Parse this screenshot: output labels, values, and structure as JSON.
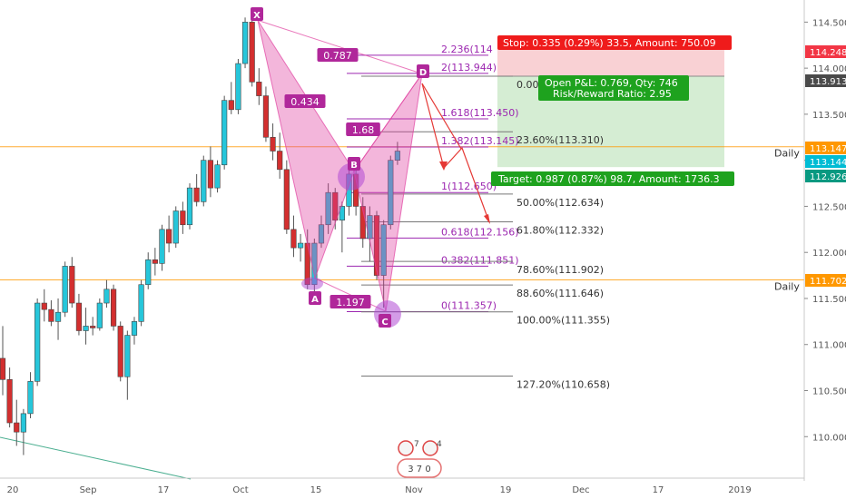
{
  "chart_data": {
    "type": "candlestick",
    "title": "",
    "xlabel": "",
    "ylabel": "",
    "ylim": [
      109.52,
      114.74
    ],
    "time_axis": {
      "ticks": [
        "20",
        "Sep",
        "17",
        "Oct",
        "15",
        "Nov",
        "19",
        "Dec",
        "17",
        "2019"
      ]
    },
    "price_axis": {
      "ticks": [
        "114.500",
        "114.000",
        "113.500",
        "113.000",
        "112.500",
        "112.000",
        "111.500",
        "111.000",
        "110.500",
        "110.000"
      ],
      "labels": [
        {
          "text": "114.248",
          "color": "#f23645"
        },
        {
          "text": "113.913",
          "color": "#4a4a4a"
        },
        {
          "text": "113.147",
          "color": "#ff9800"
        },
        {
          "text": "113.144",
          "color": "#00bcd4"
        },
        {
          "text": "112.926",
          "color": "#089981"
        },
        {
          "text": "111.702",
          "color": "#ff9800"
        }
      ]
    },
    "candles": [
      [
        110.85,
        111.2,
        110.45,
        110.62
      ],
      [
        110.62,
        110.75,
        110.1,
        110.15
      ],
      [
        110.15,
        110.4,
        109.9,
        110.05
      ],
      [
        110.05,
        110.3,
        109.8,
        110.25
      ],
      [
        110.25,
        110.7,
        110.2,
        110.6
      ],
      [
        110.6,
        111.5,
        110.55,
        111.45
      ],
      [
        111.45,
        111.6,
        111.25,
        111.38
      ],
      [
        111.38,
        111.48,
        111.2,
        111.25
      ],
      [
        111.25,
        111.5,
        111.05,
        111.35
      ],
      [
        111.35,
        111.9,
        111.3,
        111.85
      ],
      [
        111.85,
        111.95,
        111.4,
        111.45
      ],
      [
        111.45,
        111.55,
        111.1,
        111.15
      ],
      [
        111.15,
        111.4,
        111.0,
        111.2
      ],
      [
        111.2,
        111.3,
        111.1,
        111.18
      ],
      [
        111.18,
        111.5,
        111.15,
        111.45
      ],
      [
        111.45,
        111.7,
        111.4,
        111.6
      ],
      [
        111.6,
        111.65,
        111.15,
        111.2
      ],
      [
        111.2,
        111.25,
        110.6,
        110.65
      ],
      [
        110.65,
        111.15,
        110.4,
        111.1
      ],
      [
        111.1,
        111.3,
        111.0,
        111.25
      ],
      [
        111.25,
        111.7,
        111.2,
        111.65
      ],
      [
        111.65,
        112.0,
        111.6,
        111.92
      ],
      [
        111.92,
        112.05,
        111.75,
        111.88
      ],
      [
        111.88,
        112.3,
        111.8,
        112.25
      ],
      [
        112.25,
        112.4,
        112.0,
        112.1
      ],
      [
        112.1,
        112.5,
        112.05,
        112.45
      ],
      [
        112.45,
        112.55,
        112.2,
        112.3
      ],
      [
        112.3,
        112.75,
        112.25,
        112.7
      ],
      [
        112.7,
        112.85,
        112.5,
        112.55
      ],
      [
        112.55,
        113.05,
        112.5,
        113.0
      ],
      [
        113.0,
        113.15,
        112.6,
        112.7
      ],
      [
        112.7,
        113.0,
        112.65,
        112.95
      ],
      [
        112.95,
        113.7,
        112.9,
        113.65
      ],
      [
        113.65,
        113.85,
        113.5,
        113.55
      ],
      [
        113.55,
        114.1,
        113.5,
        114.05
      ],
      [
        114.05,
        114.55,
        114.0,
        114.5
      ],
      [
        114.5,
        114.55,
        113.8,
        113.85
      ],
      [
        113.85,
        114.0,
        113.6,
        113.7
      ],
      [
        113.7,
        113.8,
        113.2,
        113.25
      ],
      [
        113.25,
        113.4,
        113.0,
        113.1
      ],
      [
        113.1,
        113.3,
        112.8,
        112.9
      ],
      [
        112.9,
        113.0,
        112.2,
        112.25
      ],
      [
        112.25,
        112.4,
        111.95,
        112.05
      ],
      [
        112.05,
        112.2,
        111.9,
        112.1
      ],
      [
        112.1,
        112.25,
        111.6,
        111.65
      ],
      [
        111.65,
        112.15,
        111.55,
        112.1
      ],
      [
        112.1,
        112.4,
        112.05,
        112.3
      ],
      [
        112.3,
        112.75,
        112.2,
        112.65
      ],
      [
        112.65,
        112.7,
        112.25,
        112.35
      ],
      [
        112.35,
        112.55,
        112.0,
        112.5
      ],
      [
        112.5,
        112.95,
        112.4,
        112.85
      ],
      [
        112.85,
        112.95,
        112.4,
        112.5
      ],
      [
        112.5,
        112.6,
        112.05,
        112.15
      ],
      [
        112.15,
        112.5,
        111.9,
        112.4
      ],
      [
        112.4,
        112.45,
        111.7,
        111.75
      ],
      [
        111.75,
        112.35,
        111.4,
        112.3
      ],
      [
        112.3,
        113.05,
        112.25,
        113.0
      ],
      [
        113.0,
        113.2,
        112.95,
        113.1
      ]
    ],
    "pattern": {
      "name": "Bat",
      "points": [
        {
          "label": "X",
          "price": 114.52
        },
        {
          "label": "A",
          "price": 111.72
        },
        {
          "label": "B",
          "price": 112.88
        },
        {
          "label": "C",
          "price": 111.36
        },
        {
          "label": "D",
          "price": 113.94
        }
      ],
      "ratios": [
        "0.787",
        "0.434",
        "1.68",
        "1.197"
      ]
    },
    "fibonacci_extension": [
      {
        "ratio": "2.236",
        "price": 114.14,
        "text": "2.236(114"
      },
      {
        "ratio": "2",
        "price": 113.944,
        "text": "2(113.944)"
      },
      {
        "ratio": "1.618",
        "price": 113.45,
        "text": "1.618(113.450)"
      },
      {
        "ratio": "1.382",
        "price": 113.145,
        "text": "1.382(113.145)"
      },
      {
        "ratio": "1",
        "price": 112.65,
        "text": "1(112.650)"
      },
      {
        "ratio": "0.618",
        "price": 112.156,
        "text": "0.618(112.156)"
      },
      {
        "ratio": "0.382",
        "price": 111.851,
        "text": "0.382(111.851)"
      },
      {
        "ratio": "0",
        "price": 111.357,
        "text": "0(111.357)"
      }
    ],
    "fibonacci_retracement": [
      {
        "price": 113.913,
        "text": "0.00"
      },
      {
        "price": 113.31,
        "text": "23.60%(113.310)"
      },
      {
        "price": 112.634,
        "text": "50.00%(112.634)"
      },
      {
        "price": 112.332,
        "text": "61.80%(112.332)"
      },
      {
        "price": 111.902,
        "text": "78.60%(111.902)"
      },
      {
        "price": 111.646,
        "text": "88.60%(111.646)"
      },
      {
        "price": 111.355,
        "text": "100.00%(111.355)"
      },
      {
        "price": 110.658,
        "text": "127.20%(110.658)"
      }
    ],
    "horizontal_lines": [
      {
        "price": 113.147,
        "label": "Daily",
        "color": "#ff9800"
      },
      {
        "price": 111.702,
        "label": "Daily",
        "color": "#ff9800"
      }
    ],
    "position": {
      "entry": 113.913,
      "stop": 114.248,
      "target": 112.926,
      "stop_text": "Stop: 0.335 (0.29%) 33.5, Amount: 750.09",
      "pnl_text": "Open P&L: 0.769, Qty: 746",
      "rr_text": "Risk/Reward Ratio: 2.95",
      "target_text": "Target: 0.987 (0.87%) 98.7, Amount: 1736.3"
    },
    "events": {
      "flags_count_1": "7",
      "flags_count_2": "4",
      "events_text": "3 7 0"
    },
    "colors": {
      "up": "#26c6da",
      "down": "#d32f2f",
      "pattern_fill": "#e040a0",
      "pattern_text": "#b0279a",
      "fib_line": "#9c27b0",
      "stop_zone": "#f8c9cc",
      "target_zone": "#d3ecd1",
      "stop_label": "#ef1b1b",
      "target_label": "#1ea21e"
    }
  }
}
